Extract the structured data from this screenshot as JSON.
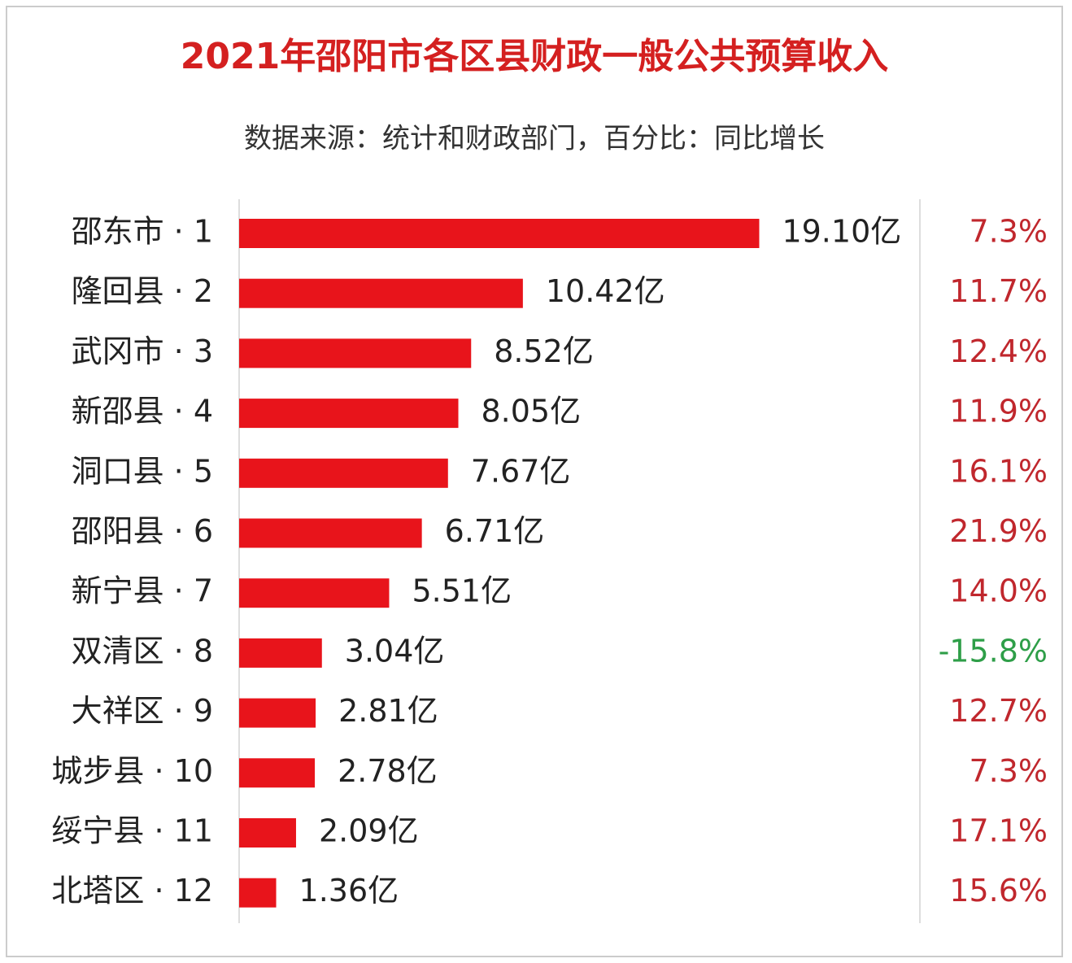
{
  "chart_data": {
    "type": "bar",
    "orientation": "horizontal",
    "title": "2021年邵阳市各区县财政一般公共预算收入",
    "subtitle": "数据来源：统计和财政部门，百分比：同比增长",
    "categories": [
      "邵东市 · 1",
      "隆回县 · 2",
      "武冈市 · 3",
      "新邵县 · 4",
      "洞口县 · 5",
      "邵阳县 · 6",
      "新宁县 · 7",
      "双清区 · 8",
      "大祥区 · 9",
      "城步县 · 10",
      "绥宁县 · 11",
      "北塔区 · 12"
    ],
    "values": [
      19.1,
      10.42,
      8.52,
      8.05,
      7.67,
      6.71,
      5.51,
      3.04,
      2.81,
      2.78,
      2.09,
      1.36
    ],
    "value_labels": [
      "19.10亿",
      "10.42亿",
      "8.52亿",
      "8.05亿",
      "7.67亿",
      "6.71亿",
      "5.51亿",
      "3.04亿",
      "2.81亿",
      "2.78亿",
      "2.09亿",
      "1.36亿"
    ],
    "color": "#e8141b",
    "xlim": [
      0,
      25
    ],
    "growth": {
      "values": [
        7.3,
        11.7,
        12.4,
        11.9,
        16.1,
        21.9,
        14.0,
        -15.8,
        12.7,
        7.3,
        17.1,
        15.6
      ],
      "value_labels": [
        "7.3%",
        "11.7%",
        "12.4%",
        "11.9%",
        "16.1%",
        "21.9%",
        "14.0%",
        "-15.8%",
        "12.7%",
        "7.3%",
        "17.1%",
        "15.6%"
      ],
      "positive_color": "#c0272d",
      "negative_color": "#2e9e48"
    }
  }
}
